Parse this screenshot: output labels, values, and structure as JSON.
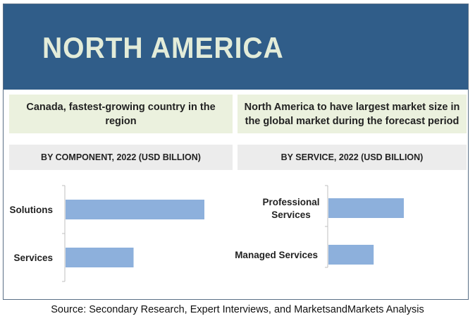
{
  "banner": {
    "title": "NORTH AMERICA"
  },
  "callouts": {
    "left": "Canada, fastest-growing country in the region",
    "right": "North America to have largest market size in the global market  during the forecast period"
  },
  "source": "Source: Secondary Research, Expert Interviews, and MarketsandMarkets Analysis",
  "colors": {
    "banner": "#305d89",
    "bar": "#8db0dc",
    "axis": "#bfbfbf",
    "title_text": "#e3ecd9"
  },
  "chart_data": [
    {
      "type": "bar",
      "orientation": "horizontal",
      "title": "BY COMPONENT, 2022 (USD BILLION)",
      "categories": [
        "Solutions",
        "Services"
      ],
      "series": [
        {
          "values": [
            100,
            49
          ]
        }
      ],
      "value_axis": "hidden",
      "relative_scale": true,
      "grid": false
    },
    {
      "type": "bar",
      "orientation": "horizontal",
      "title": "BY SERVICE, 2022 (USD BILLION)",
      "categories": [
        "Professional Services",
        "Managed Services"
      ],
      "series": [
        {
          "values": [
            100,
            60
          ]
        }
      ],
      "value_axis": "hidden",
      "relative_scale": true,
      "grid": false
    }
  ]
}
